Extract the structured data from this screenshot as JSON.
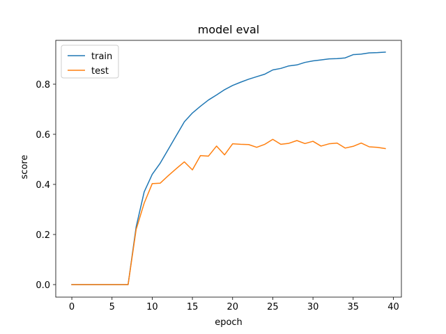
{
  "chart_data": {
    "type": "line",
    "title": "model eval",
    "xlabel": "epoch",
    "ylabel": "score",
    "xlim": [
      -2,
      41
    ],
    "ylim": [
      -0.05,
      0.975
    ],
    "xticks": [
      0,
      5,
      10,
      15,
      20,
      25,
      30,
      35,
      40
    ],
    "yticks": [
      0.0,
      0.2,
      0.4,
      0.6,
      0.8
    ],
    "xtick_labels": [
      "0",
      "5",
      "10",
      "15",
      "20",
      "25",
      "30",
      "35",
      "40"
    ],
    "ytick_labels": [
      "0.0",
      "0.2",
      "0.4",
      "0.6",
      "0.8"
    ],
    "legend_position": "top-left",
    "grid": false,
    "x": [
      0,
      1,
      2,
      3,
      4,
      5,
      6,
      7,
      8,
      9,
      10,
      11,
      12,
      13,
      14,
      15,
      16,
      17,
      18,
      19,
      20,
      21,
      22,
      23,
      24,
      25,
      26,
      27,
      28,
      29,
      30,
      31,
      32,
      33,
      34,
      35,
      36,
      37,
      38,
      39
    ],
    "series": [
      {
        "name": "train",
        "color": "#1f77b4",
        "values": [
          0.0,
          0.0,
          0.0,
          0.0,
          0.0,
          0.0,
          0.0,
          0.0,
          0.23,
          0.37,
          0.44,
          0.485,
          0.54,
          0.595,
          0.65,
          0.685,
          0.712,
          0.737,
          0.757,
          0.778,
          0.795,
          0.808,
          0.82,
          0.83,
          0.84,
          0.857,
          0.863,
          0.873,
          0.877,
          0.887,
          0.893,
          0.897,
          0.901,
          0.902,
          0.905,
          0.918,
          0.92,
          0.925,
          0.926,
          0.928
        ]
      },
      {
        "name": "test",
        "color": "#ff7f0e",
        "values": [
          0.0,
          0.0,
          0.0,
          0.0,
          0.0,
          0.0,
          0.0,
          0.0,
          0.22,
          0.325,
          0.403,
          0.405,
          0.435,
          0.463,
          0.49,
          0.458,
          0.515,
          0.513,
          0.553,
          0.518,
          0.562,
          0.56,
          0.559,
          0.548,
          0.56,
          0.58,
          0.56,
          0.564,
          0.575,
          0.563,
          0.572,
          0.553,
          0.562,
          0.565,
          0.545,
          0.552,
          0.565,
          0.55,
          0.548,
          0.543
        ]
      }
    ]
  }
}
